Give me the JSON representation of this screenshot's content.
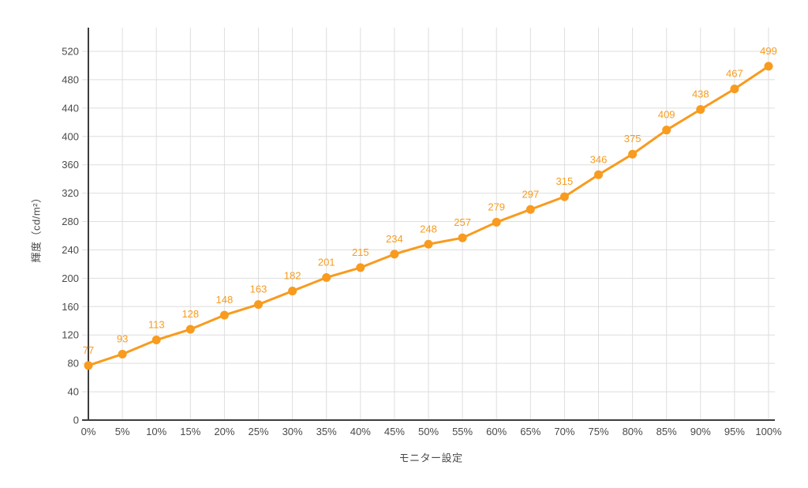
{
  "chart_data": {
    "type": "line",
    "title": "",
    "xlabel": "モニター設定",
    "ylabel": "輝度（cd/m²）",
    "categories": [
      "0%",
      "5%",
      "10%",
      "15%",
      "20%",
      "25%",
      "30%",
      "35%",
      "40%",
      "45%",
      "50%",
      "55%",
      "60%",
      "65%",
      "70%",
      "75%",
      "80%",
      "85%",
      "90%",
      "95%",
      "100%"
    ],
    "values": [
      77,
      93,
      113,
      128,
      148,
      163,
      182,
      201,
      215,
      234,
      248,
      257,
      279,
      297,
      315,
      346,
      375,
      409,
      438,
      467,
      499
    ],
    "yticks": [
      0,
      40,
      80,
      120,
      160,
      200,
      240,
      280,
      320,
      360,
      400,
      440,
      480,
      520
    ],
    "ylim": [
      0,
      553
    ],
    "grid": true,
    "legend": "none",
    "data_labels": true,
    "colors": {
      "series": "#F89B1E",
      "data_label": "#F89B1E",
      "axis_line": "#3D3D3D",
      "gridline": "#DEDEDE",
      "tick_label": "#4A4A4A",
      "axis_title": "#4A4A4A",
      "background": "#FFFFFF"
    }
  }
}
